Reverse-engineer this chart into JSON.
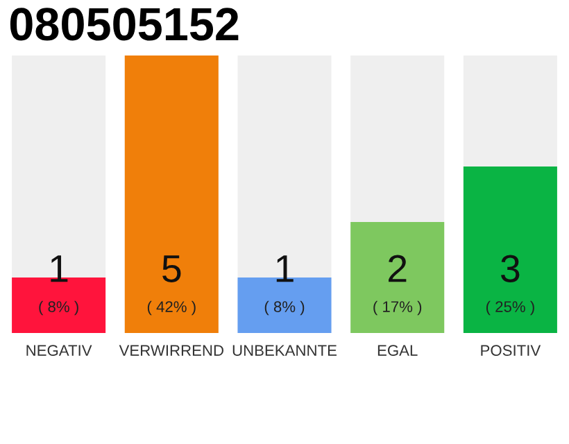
{
  "chart_data": {
    "type": "bar",
    "title": "080505152",
    "categories": [
      "NEGATIV",
      "VERWIRREND",
      "UNBEKANNTE",
      "EGAL",
      "POSITIV"
    ],
    "values": [
      1,
      5,
      1,
      2,
      3
    ],
    "colors": [
      "#ff143c",
      "#f07f0a",
      "#659ef0",
      "#7ec85f",
      "#0ab444"
    ],
    "value_labels": [
      "1\n( 8% )",
      "5\n( 42% )",
      "1\n( 8% )",
      "2\n( 17% )",
      "3\n( 25% )"
    ],
    "grid": false,
    "legend": false
  }
}
